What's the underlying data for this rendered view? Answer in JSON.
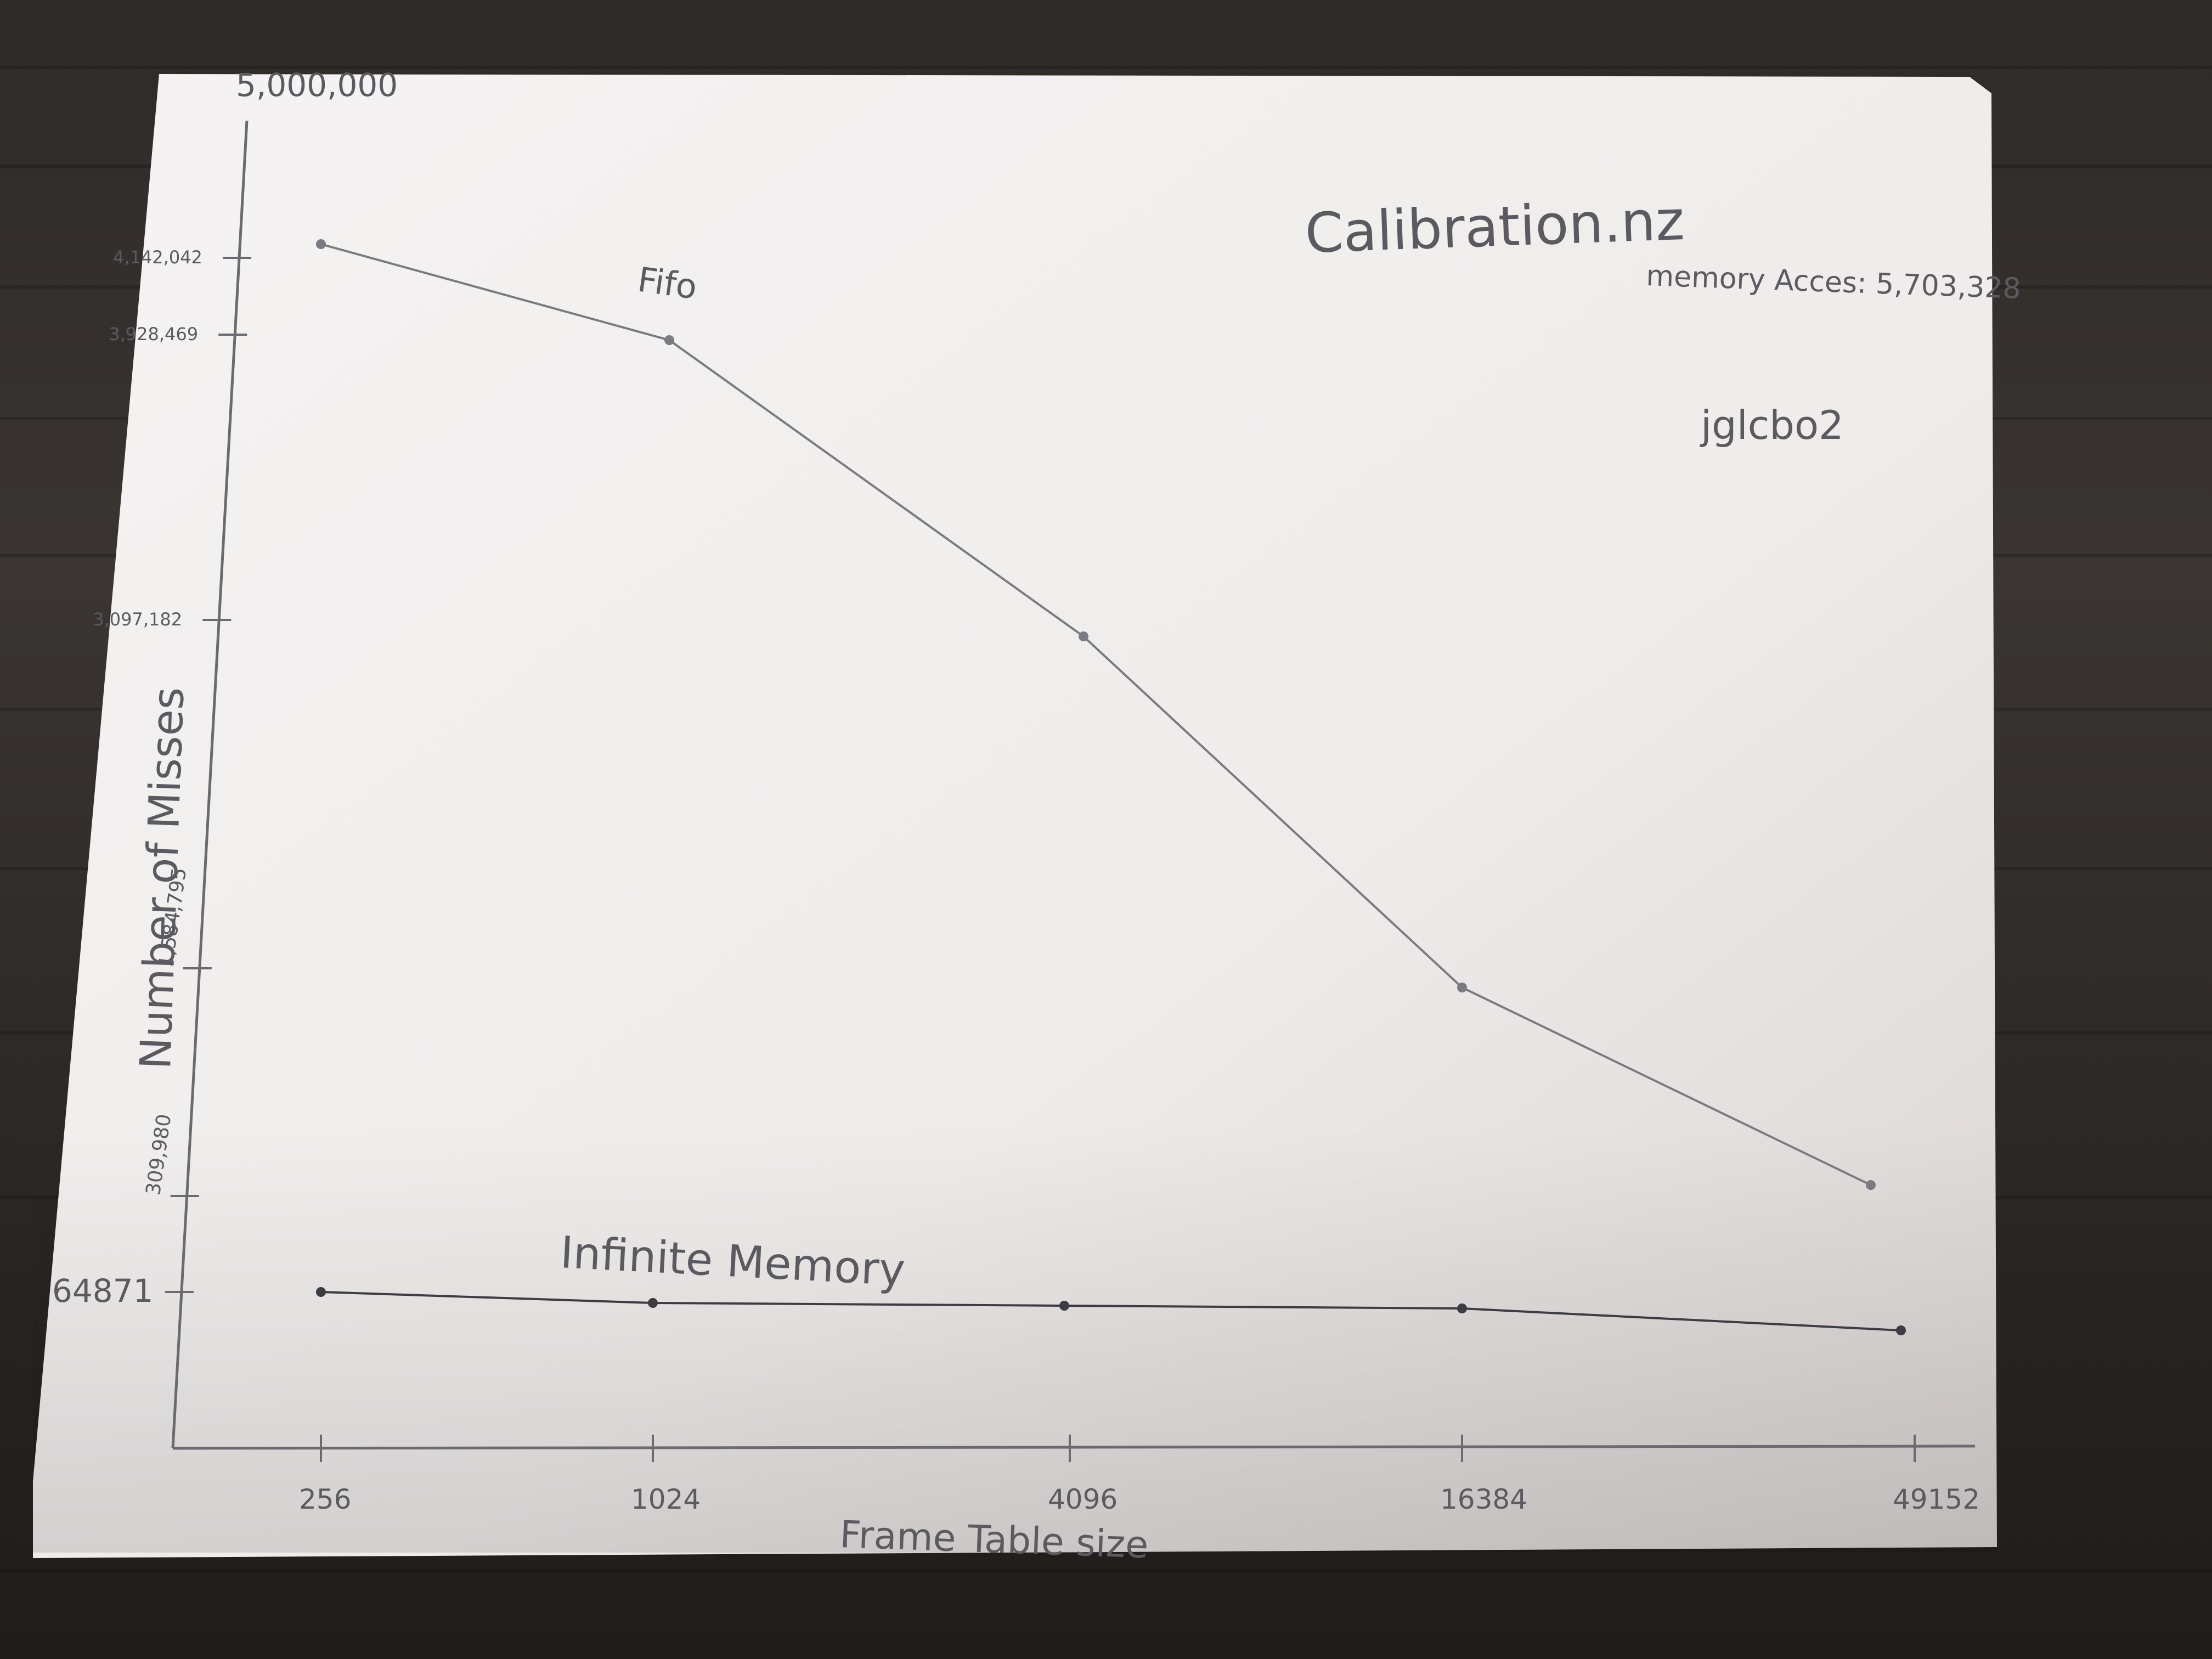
{
  "header": {
    "title": "Calibration.nz",
    "memory_access": "memory Acces: 5,703,328",
    "author": "jglcbo2"
  },
  "colors": {
    "paper": "#f2efef",
    "pencil": "#6a6a70",
    "pen": "#4a4a50"
  },
  "chart_data": {
    "type": "line",
    "xlabel": "Frame Table size",
    "ylabel": "Number of Misses",
    "categories": [
      "256",
      "1024",
      "4096",
      "16384",
      "49152"
    ],
    "y_tick_labels": [
      "5,000,000",
      "4,142,042",
      "3,928,469",
      "3,097,182",
      "1,584,795",
      "309,980",
      "64871"
    ],
    "series": [
      {
        "name": "Fifo",
        "values": [
          4142042,
          3928469,
          3097182,
          1584795,
          309980
        ]
      },
      {
        "name": "Infinite Memory",
        "values": [
          64871,
          64871,
          64871,
          64871,
          64871
        ]
      }
    ],
    "grid": false,
    "legend": "inline labels"
  }
}
